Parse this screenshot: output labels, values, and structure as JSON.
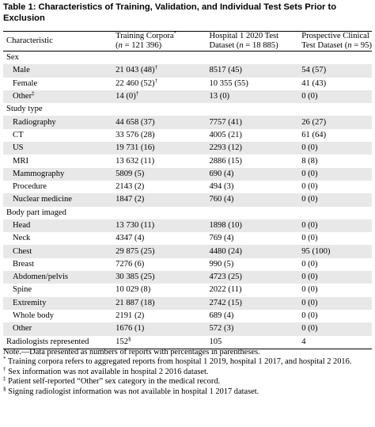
{
  "caption": "Table 1: Characteristics of Training, Validation, and Individual Test Sets Prior to Exclusion",
  "header": {
    "characteristic": "Characteristic",
    "col1_line1": "Training Corpora",
    "col1_line1_sup": "*",
    "col1_line2_pre": "(",
    "col1_n": "n",
    "col1_line2_post": " = 121 396)",
    "col2_line1": "Hospital 1 2020 Test",
    "col2_line2_pre": "Dataset (",
    "col2_n": "n",
    "col2_line2_post": " = 18 885)",
    "col3_line1": "Prospective Clinical",
    "col3_line2_pre": "Test Dataset (",
    "col3_n": "n",
    "col3_line2_post": " = 95)"
  },
  "sections": [
    {
      "title": "Sex",
      "rows": [
        {
          "label": "Male",
          "c1": "21 043 (48)",
          "c1_sup": "†",
          "c2": "8517 (45)",
          "c3": "54 (57)"
        },
        {
          "label": "Female",
          "c1": "22 460 (52)",
          "c1_sup": "†",
          "c2": "10 355 (55)",
          "c3": "41 (43)"
        },
        {
          "label": "Other",
          "label_sup": "‡",
          "c1": "14 (0)",
          "c1_sup": "†",
          "c2": "13 (0)",
          "c3": "0 (0)"
        }
      ]
    },
    {
      "title": "Study type",
      "rows": [
        {
          "label": "Radiography",
          "c1": "44 658 (37)",
          "c2": "7757 (41)",
          "c3": "26 (27)"
        },
        {
          "label": "CT",
          "c1": "33 576 (28)",
          "c2": "4005 (21)",
          "c3": "61 (64)"
        },
        {
          "label": "US",
          "c1": "19 731 (16)",
          "c2": "2293 (12)",
          "c3": "0 (0)"
        },
        {
          "label": "MRI",
          "c1": "13 632 (11)",
          "c2": "2886 (15)",
          "c3": "8 (8)"
        },
        {
          "label": "Mammography",
          "c1": "5809 (5)",
          "c2": "690 (4)",
          "c3": "0 (0)"
        },
        {
          "label": "Procedure",
          "c1": "2143 (2)",
          "c2": "494 (3)",
          "c3": "0 (0)"
        },
        {
          "label": "Nuclear medicine",
          "c1": "1847 (2)",
          "c2": "760 (4)",
          "c3": "0 (0)"
        }
      ]
    },
    {
      "title": "Body part imaged",
      "rows": [
        {
          "label": "Head",
          "c1": "13 730 (11)",
          "c2": "1898 (10)",
          "c3": "0 (0)"
        },
        {
          "label": "Neck",
          "c1": "4347 (4)",
          "c2": "769 (4)",
          "c3": "0 (0)"
        },
        {
          "label": "Chest",
          "c1": "29 875 (25)",
          "c2": "4480 (24)",
          "c3": "95 (100)"
        },
        {
          "label": "Breast",
          "c1": "7276 (6)",
          "c2": "990 (5)",
          "c3": "0 (0)"
        },
        {
          "label": "Abdomen/pelvis",
          "c1": "30 385 (25)",
          "c2": "4723 (25)",
          "c3": "0 (0)"
        },
        {
          "label": "Spine",
          "c1": "10 029 (8)",
          "c2": "2022 (11)",
          "c3": "0 (0)"
        },
        {
          "label": "Extremity",
          "c1": "21 887 (18)",
          "c2": "2742 (15)",
          "c3": "0 (0)"
        },
        {
          "label": "Whole body",
          "c1": "2191 (2)",
          "c2": "689 (4)",
          "c3": "0 (0)"
        },
        {
          "label": "Other",
          "c1": "1676 (1)",
          "c2": "572 (3)",
          "c3": "0 (0)"
        }
      ]
    }
  ],
  "radiologists": {
    "label": "Radiologists represented",
    "c1": "152",
    "c1_sup": "§",
    "c2": "105",
    "c3": "4"
  },
  "notes": {
    "note": "Note.—Data presented as numbers of reports with percentages in parentheses.",
    "star_sym": "*",
    "star": " Training corpora refers to aggregated reports from hospital 1 2019, hospital 1 2017, and hospital 2 2016.",
    "dagger_sym": "†",
    "dagger": " Sex information was not available in hospital 2 2016 dataset.",
    "ddagger_sym": "‡",
    "ddagger": " Patient self-reported “Other” sex category in the medical record.",
    "section_sym": "§",
    "section": " Signing radiologist information was not available in hospital 1 2017 dataset."
  }
}
